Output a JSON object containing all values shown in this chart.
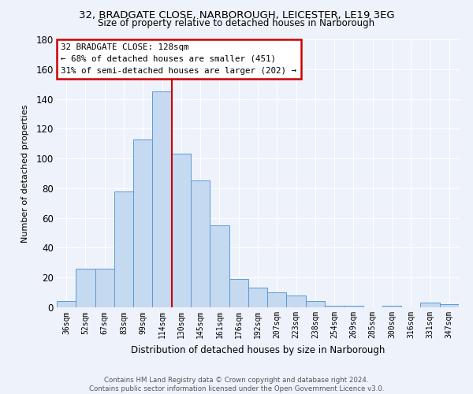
{
  "title_line1": "32, BRADGATE CLOSE, NARBOROUGH, LEICESTER, LE19 3EG",
  "title_line2": "Size of property relative to detached houses in Narborough",
  "xlabel": "Distribution of detached houses by size in Narborough",
  "ylabel": "Number of detached properties",
  "categories": [
    "36sqm",
    "52sqm",
    "67sqm",
    "83sqm",
    "99sqm",
    "114sqm",
    "130sqm",
    "145sqm",
    "161sqm",
    "176sqm",
    "192sqm",
    "207sqm",
    "223sqm",
    "238sqm",
    "254sqm",
    "269sqm",
    "285sqm",
    "300sqm",
    "316sqm",
    "331sqm",
    "347sqm"
  ],
  "values": [
    4,
    26,
    26,
    78,
    113,
    145,
    103,
    85,
    55,
    19,
    13,
    10,
    8,
    4,
    1,
    1,
    0,
    1,
    0,
    3,
    2
  ],
  "bar_color": "#c5d9f0",
  "bar_edge_color": "#5b9bd5",
  "vline_color": "#cc0000",
  "vline_index": 5.5,
  "annotation_text_line1": "32 BRADGATE CLOSE: 128sqm",
  "annotation_text_line2": "← 68% of detached houses are smaller (451)",
  "annotation_text_line3": "31% of semi-detached houses are larger (202) →",
  "annotation_box_color": "#ffffff",
  "annotation_box_edge": "#cc0000",
  "ylim": [
    0,
    180
  ],
  "yticks": [
    0,
    20,
    40,
    60,
    80,
    100,
    120,
    140,
    160,
    180
  ],
  "background_color": "#eef2fa",
  "grid_color": "#ffffff",
  "footer_line1": "Contains HM Land Registry data © Crown copyright and database right 2024.",
  "footer_line2": "Contains public sector information licensed under the Open Government Licence v3.0."
}
